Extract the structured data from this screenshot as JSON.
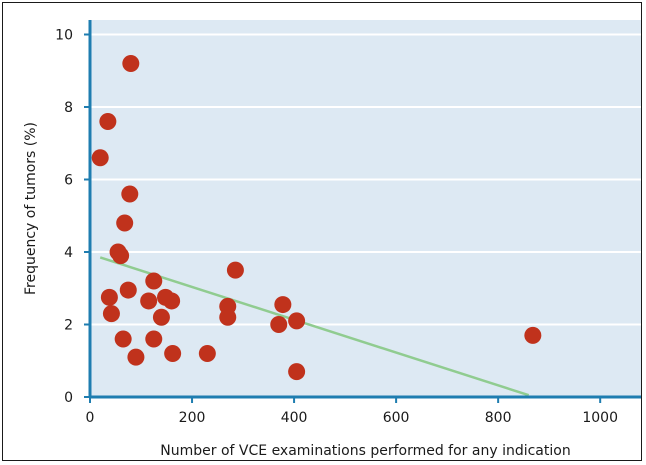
{
  "chart_data": {
    "type": "scatter",
    "title": "",
    "xlabel": "Number of VCE examinations performed for any indication",
    "ylabel": "Frequency of tumors (%)",
    "xlim": [
      0,
      1080
    ],
    "ylim": [
      0,
      10.4
    ],
    "xticks": [
      0,
      200,
      400,
      600,
      800,
      1000
    ],
    "yticks": [
      0,
      2,
      4,
      6,
      8,
      10
    ],
    "grid": "horizontal",
    "points": [
      {
        "x": 80,
        "y": 9.2
      },
      {
        "x": 35,
        "y": 7.6
      },
      {
        "x": 20,
        "y": 6.6
      },
      {
        "x": 78,
        "y": 5.6
      },
      {
        "x": 68,
        "y": 4.8
      },
      {
        "x": 55,
        "y": 4.0
      },
      {
        "x": 60,
        "y": 3.9
      },
      {
        "x": 125,
        "y": 3.2
      },
      {
        "x": 75,
        "y": 2.95
      },
      {
        "x": 38,
        "y": 2.75
      },
      {
        "x": 115,
        "y": 2.65
      },
      {
        "x": 148,
        "y": 2.75
      },
      {
        "x": 160,
        "y": 2.65
      },
      {
        "x": 42,
        "y": 2.3
      },
      {
        "x": 140,
        "y": 2.2
      },
      {
        "x": 65,
        "y": 1.6
      },
      {
        "x": 125,
        "y": 1.6
      },
      {
        "x": 90,
        "y": 1.1
      },
      {
        "x": 162,
        "y": 1.2
      },
      {
        "x": 230,
        "y": 1.2
      },
      {
        "x": 270,
        "y": 2.5
      },
      {
        "x": 270,
        "y": 2.2
      },
      {
        "x": 285,
        "y": 3.5
      },
      {
        "x": 378,
        "y": 2.55
      },
      {
        "x": 370,
        "y": 2.0
      },
      {
        "x": 405,
        "y": 2.1
      },
      {
        "x": 405,
        "y": 0.7
      },
      {
        "x": 868,
        "y": 1.7
      }
    ],
    "trendline": {
      "x": [
        20,
        860
      ],
      "y": [
        3.85,
        0.05
      ]
    },
    "colors": {
      "plot_background": "#dde9f3",
      "point_fill": "#c0321c",
      "trendline": "#90cc90",
      "axis": "#1e7db0",
      "grid": "#ffffff"
    }
  }
}
